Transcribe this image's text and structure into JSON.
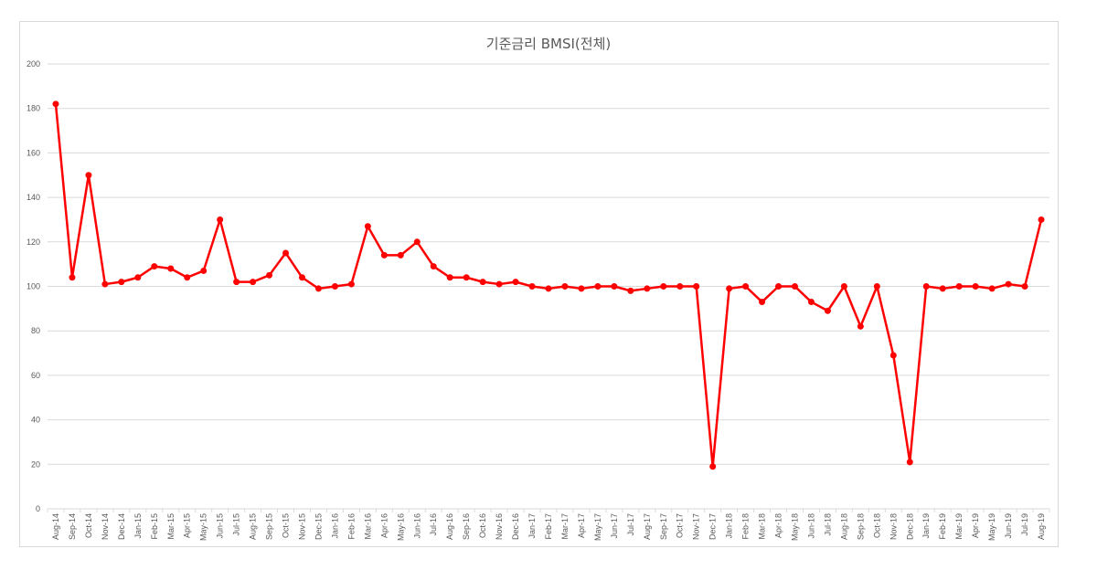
{
  "chart_data": {
    "type": "line",
    "title": "기준금리 BMSI(전체)",
    "xlabel": "",
    "ylabel": "",
    "ylim": [
      0,
      200
    ],
    "yticks": [
      0,
      20,
      40,
      60,
      80,
      100,
      120,
      140,
      160,
      180,
      200
    ],
    "grid": true,
    "legend": "none",
    "categories": [
      "Aug-14",
      "Sep-14",
      "Oct-14",
      "Nov-14",
      "Dec-14",
      "Jan-15",
      "Feb-15",
      "Mar-15",
      "Apr-15",
      "May-15",
      "Jun-15",
      "Jul-15",
      "Aug-15",
      "Sep-15",
      "Oct-15",
      "Nov-15",
      "Dec-15",
      "Jan-16",
      "Feb-16",
      "Mar-16",
      "Apr-16",
      "May-16",
      "Jun-16",
      "Jul-16",
      "Aug-16",
      "Sep-16",
      "Oct-16",
      "Nov-16",
      "Dec-16",
      "Jan-17",
      "Feb-17",
      "Mar-17",
      "Apr-17",
      "May-17",
      "Jun-17",
      "Jul-17",
      "Aug-17",
      "Sep-17",
      "Oct-17",
      "Nov-17",
      "Dec-17",
      "Jan-18",
      "Feb-18",
      "Mar-18",
      "Apr-18",
      "May-18",
      "Jun-18",
      "Jul-18",
      "Aug-18",
      "Sep-18",
      "Oct-18",
      "Nov-18",
      "Dec-18",
      "Jan-19",
      "Feb-19",
      "Mar-19",
      "Apr-19",
      "May-19",
      "Jun-19",
      "Jul-19",
      "Aug-19"
    ],
    "series": [
      {
        "name": "기준금리 BMSI(전체)",
        "color": "#ff0000",
        "values": [
          182,
          104,
          150,
          101,
          102,
          104,
          109,
          108,
          104,
          107,
          130,
          102,
          102,
          105,
          115,
          104,
          99,
          100,
          101,
          127,
          114,
          114,
          120,
          109,
          104,
          104,
          102,
          101,
          102,
          100,
          99,
          100,
          99,
          100,
          100,
          98,
          99,
          100,
          100,
          100,
          19,
          99,
          100,
          93,
          100,
          100,
          93,
          89,
          100,
          82,
          100,
          69,
          21,
          100,
          99,
          100,
          100,
          99,
          101,
          100,
          130
        ]
      }
    ]
  },
  "colors": {
    "line": "#ff0000",
    "grid": "#d9d9d9",
    "text": "#595959"
  }
}
